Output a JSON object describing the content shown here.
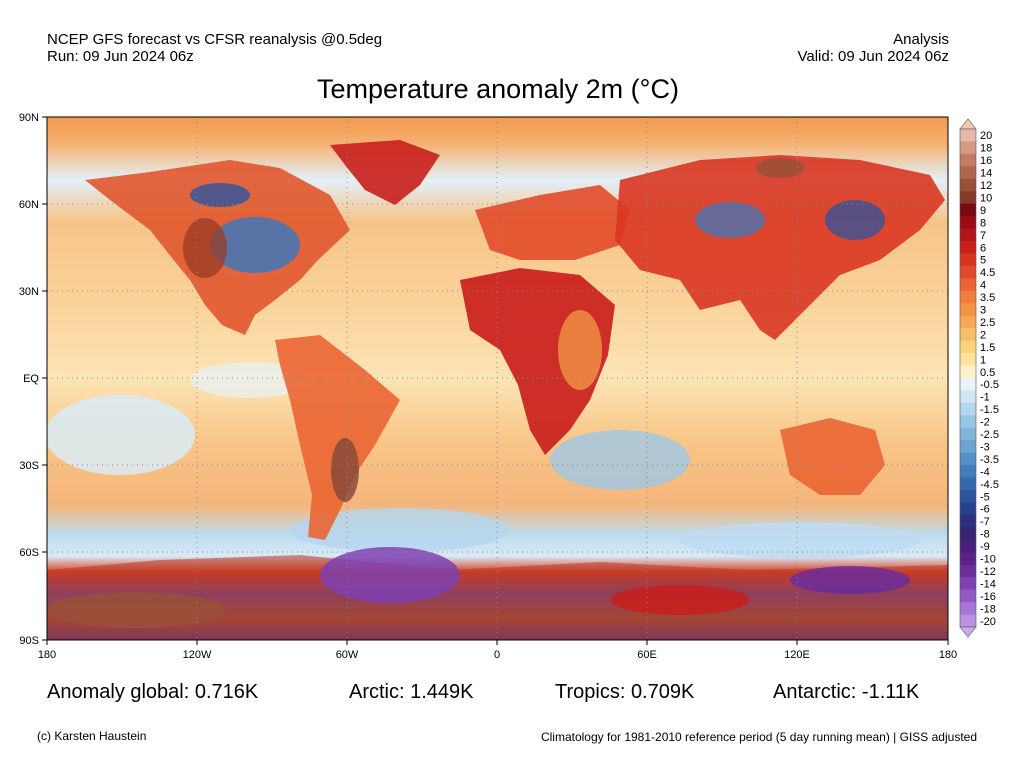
{
  "header": {
    "line1": "NCEP GFS forecast vs CFSR reanalysis @0.5deg",
    "line2": "Run: 09 Jun 2024 06z",
    "right1": "Analysis",
    "right2": "Valid: 09 Jun 2024 06z"
  },
  "title": "Temperature anomaly 2m (°C)",
  "map": {
    "lat_labels": [
      "90N",
      "60N",
      "30N",
      "EQ",
      "30S",
      "60S",
      "90S"
    ],
    "lon_labels": [
      "180",
      "120W",
      "60W",
      "0",
      "60E",
      "120E",
      "180"
    ],
    "legend": {
      "labels": [
        "20",
        "18",
        "16",
        "14",
        "12",
        "10",
        "9",
        "8",
        "7",
        "6",
        "5",
        "4.5",
        "4",
        "3.5",
        "3",
        "2.5",
        "2",
        "1.5",
        "1",
        "0.5",
        "-0.5",
        "-1",
        "-1.5",
        "-2",
        "-2.5",
        "-3",
        "-3.5",
        "-4",
        "-4.5",
        "-5",
        "-6",
        "-7",
        "-8",
        "-9",
        "-10",
        "-12",
        "-14",
        "-16",
        "-18",
        "-20"
      ],
      "colors": [
        "#e8b8a8",
        "#d69a84",
        "#c47b64",
        "#b0654d",
        "#9a5039",
        "#843b29",
        "#7a0a12",
        "#9a0c14",
        "#b3161a",
        "#c91f1c",
        "#d93622",
        "#e24b2a",
        "#ea6533",
        "#ef7d3b",
        "#f39346",
        "#f6a955",
        "#f8bf69",
        "#fad27f",
        "#fbe39c",
        "#fdf1c7",
        "#e9f4fb",
        "#cfe6f4",
        "#b4d7ec",
        "#99c6e3",
        "#82b5da",
        "#6ba3d0",
        "#5690c6",
        "#437cbb",
        "#3668ad",
        "#2d549d",
        "#283f8d",
        "#2a2f7e",
        "#362571",
        "#46207a",
        "#592289",
        "#6c2d9b",
        "#7f41b1",
        "#9259c5",
        "#a673d6",
        "#bc92e3"
      ],
      "top_color": "#f0c8b8",
      "bottom_color": "#c9aaf0"
    }
  },
  "stats": {
    "global": "Anomaly global: 0.716K",
    "arctic": "Arctic: 1.449K",
    "tropics": "Tropics: 0.709K",
    "antarctic": "Antarctic: -1.11K"
  },
  "footer": {
    "credit": "(c) Karsten Haustein",
    "note": "Climatology for 1981-2010 reference period (5 day running mean) | GISS adjusted"
  }
}
